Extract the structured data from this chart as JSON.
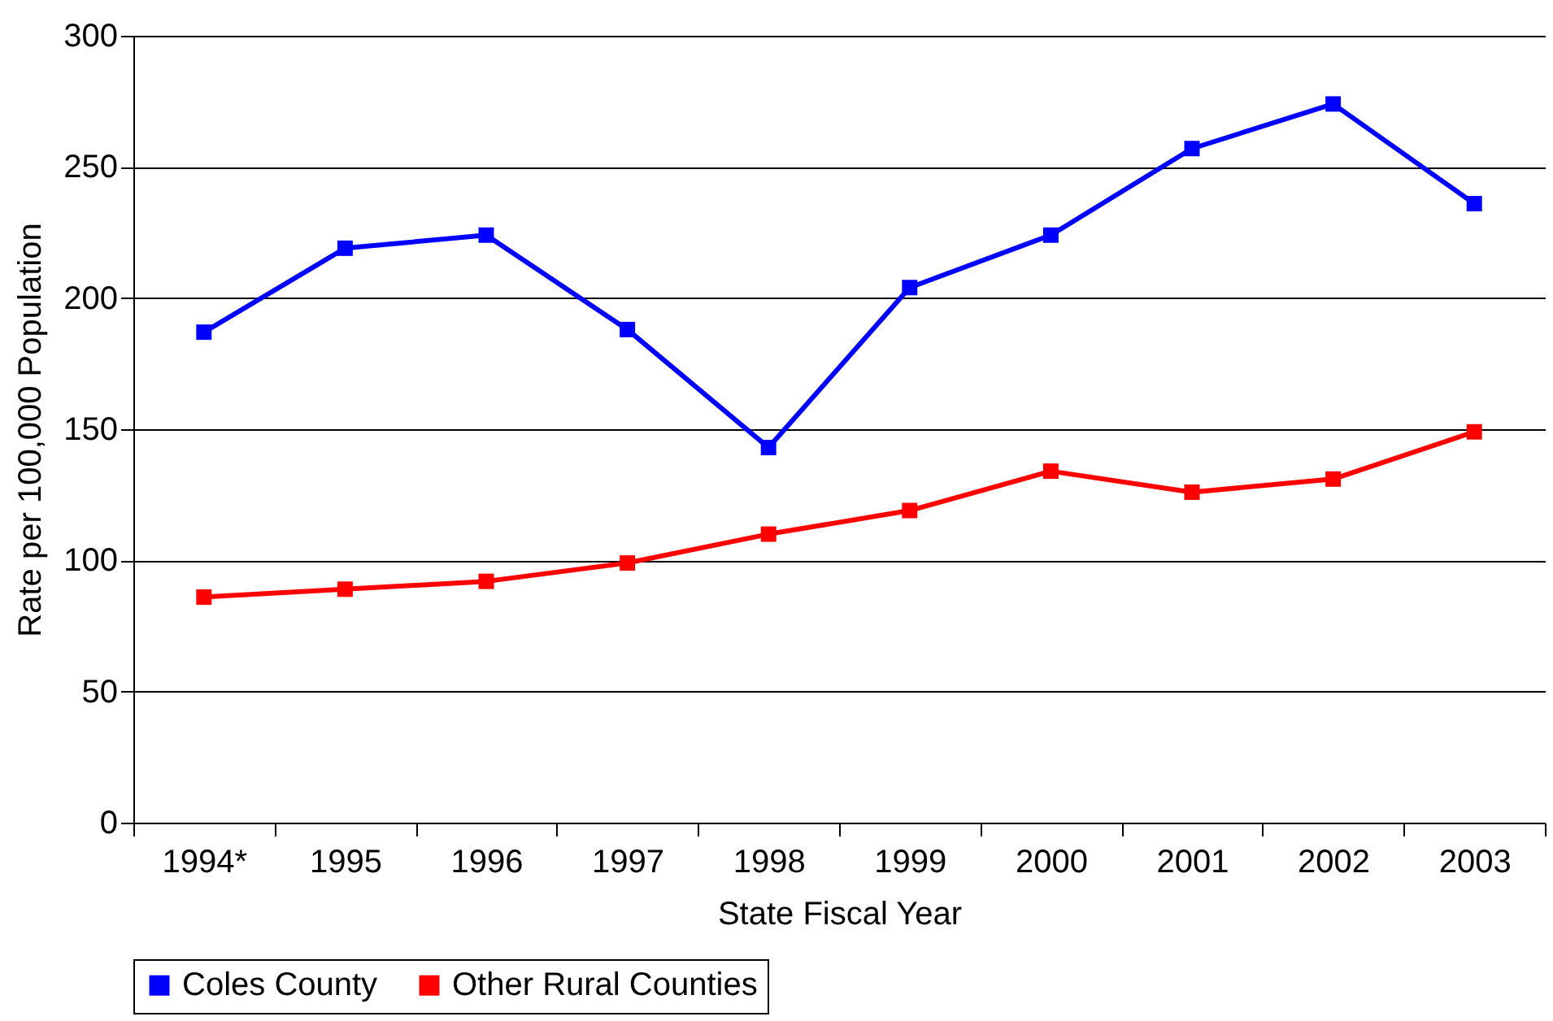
{
  "chart_data": {
    "type": "line",
    "xlabel": "State Fiscal Year",
    "ylabel": "Rate per 100,000 Population",
    "categories": [
      "1994*",
      "1995",
      "1996",
      "1997",
      "1998",
      "1999",
      "2000",
      "2001",
      "2002",
      "2003"
    ],
    "series": [
      {
        "name": "Coles County",
        "color": "#0000ff",
        "values": [
          187,
          219,
          224,
          188,
          143,
          204,
          224,
          257,
          274,
          236
        ]
      },
      {
        "name": "Other Rural Counties",
        "color": "#ff0000",
        "values": [
          86,
          89,
          92,
          99,
          110,
          119,
          134,
          126,
          131,
          149
        ]
      }
    ],
    "ylim": [
      0,
      300
    ],
    "yticks": [
      0,
      50,
      100,
      150,
      200,
      250,
      300
    ],
    "grid": "y",
    "legend": "bottom",
    "marker": "square",
    "line_style": "solid"
  }
}
